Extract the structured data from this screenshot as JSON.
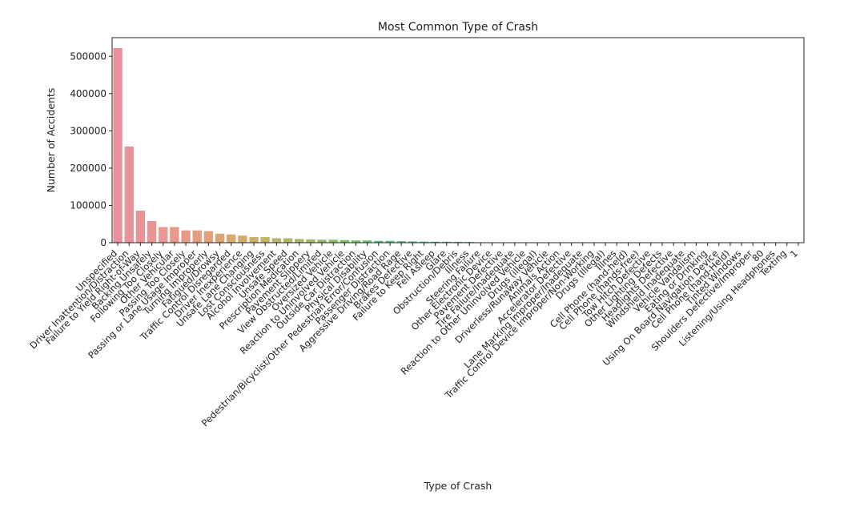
{
  "chart_data": {
    "type": "bar",
    "title": "Most Common Type of Crash",
    "xlabel": "Type of Crash",
    "ylabel": "Number of Accidents",
    "ylim": [
      0,
      550000
    ],
    "yticks": [
      0,
      100000,
      200000,
      300000,
      400000,
      500000
    ],
    "ytick_labels": [
      "0",
      "100000",
      "200000",
      "300000",
      "400000",
      "500000"
    ],
    "grid": false,
    "legend": "none",
    "categories": [
      "Unspecified",
      "Driver Inattention/Distraction",
      "Failure to Yield Right-of-Way",
      "Backing Unsafely",
      "Following Too Closely",
      "Other Vehicular",
      "Passing Too Closely",
      "Passing or Lane Usage Improper",
      "Turning Improperly",
      "Fatigued/Drowsy",
      "Traffic Control Disregarded",
      "Driver Inexperience",
      "Unsafe Lane Changing",
      "Lost Consciousness",
      "Alcohol Involvement",
      "Unsafe Speed",
      "Prescription Medication",
      "Pavement Slippery",
      "View Obstructed/Limited",
      "Oversized Vehicle",
      "Reaction to Uninvolved Vehicle",
      "Outside Car Distraction",
      "Physical Disability",
      "Pedestrian/Bicyclist/Other Pedestrian Error/Confusion",
      "Passenger Distraction",
      "Aggressive Driving/Road Rage",
      "Brakes Defective",
      "Failure to Keep Right",
      "Fell Asleep",
      "Glare",
      "Obstruction/Debris",
      "Illness",
      "Steering Failure",
      "Other Electronic Device",
      "Pavement Defective",
      "Tire Failure/Inadequate",
      "Reaction to Other Uninvolved Vehicle",
      "Drugs (illegal)",
      "Driverless/Runaway Vehicle",
      "Animals Action",
      "Accelerator Defective",
      "Lane Marking Improper/Inadequate",
      "Traffic Control Device Improper/Non-Working",
      "Drugs (Illegal)",
      "Illnes",
      "Cell Phone (hand-held)",
      "Cell Phone (hands-free)",
      "Tow Hitch Defective",
      "Other Lighting Defects",
      "Headlights Defective",
      "Windshield Inadequate",
      "Vehicle Vandalism",
      "Eating or Drinking",
      "Using On Board Navigation Device",
      "Cell Phone (hand-Held)",
      "Tinted Windows",
      "Shoulders Defective/Improper",
      "80",
      "Listening/Using Headphones",
      "Texting",
      "1"
    ],
    "values": [
      522000,
      258000,
      86000,
      58000,
      42000,
      42000,
      33000,
      33000,
      31000,
      24000,
      22000,
      19000,
      15000,
      15000,
      12000,
      12000,
      10000,
      9000,
      8000,
      8000,
      7000,
      6000,
      6000,
      5000,
      5000,
      4000,
      3500,
      3000,
      2800,
      2600,
      2300,
      2000,
      1200,
      900,
      800,
      700,
      600,
      500,
      450,
      420,
      400,
      380,
      350,
      300,
      280,
      250,
      230,
      200,
      180,
      160,
      140,
      120,
      100,
      90,
      80,
      60,
      50,
      20,
      15,
      10,
      1
    ],
    "colors": [
      "#e8909b",
      "#e8929a",
      "#e89497",
      "#e89693",
      "#e8988f",
      "#e79a8a",
      "#e69c84",
      "#e59e7f",
      "#e2a17a",
      "#dfa475",
      "#d9a872",
      "#d3ab6f",
      "#cbae6c",
      "#c3b16a",
      "#bab369",
      "#b0b568",
      "#a6b767",
      "#9cb967",
      "#92ba67",
      "#88bb68",
      "#7ebc6a",
      "#74bd6c",
      "#6bbd70",
      "#63bd75",
      "#5dbd7b",
      "#58bd82",
      "#55bc89",
      "#53bb90",
      "#52ba97",
      "#52b99e",
      "#52b7a4",
      "#53b6aa",
      "#54b4b0",
      "#55b2b5",
      "#57b0ba",
      "#59adbf",
      "#5baac4",
      "#5ea7c9",
      "#62a4ce",
      "#66a0d2",
      "#6b9cd6",
      "#7198d9",
      "#7793dc",
      "#7e8fde",
      "#868adf",
      "#8e86df",
      "#9682de",
      "#9e7edc",
      "#a67bd9",
      "#ae78d5",
      "#b576d1",
      "#bc74cc",
      "#c273c7",
      "#c873c1",
      "#cd74bb",
      "#d275b5",
      "#d677af",
      "#da7aa9",
      "#dd7da4",
      "#e0819f",
      "#e3859b"
    ]
  }
}
